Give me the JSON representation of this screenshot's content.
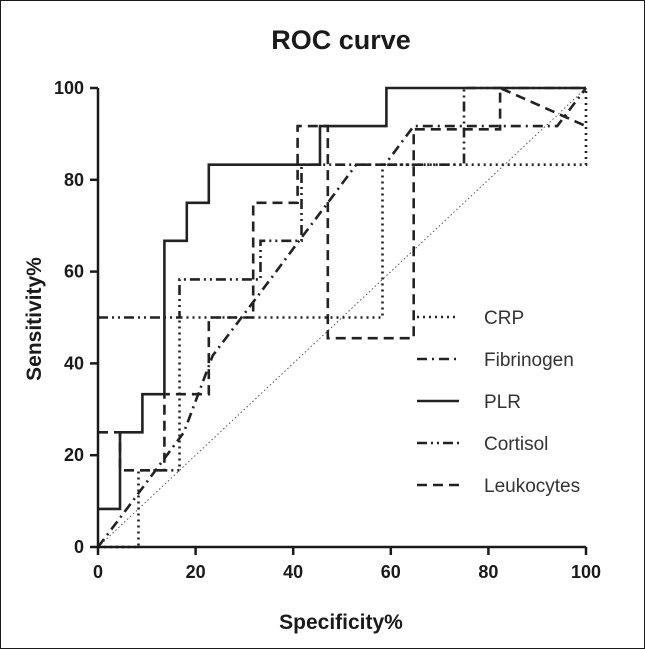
{
  "chart_data": {
    "type": "line",
    "title": "ROC curve",
    "xlabel": "Specificity%",
    "ylabel": "Sensitivity%",
    "xlim": [
      0,
      100
    ],
    "ylim": [
      0,
      100
    ],
    "xticks": [
      0,
      20,
      40,
      60,
      80,
      100
    ],
    "yticks": [
      0,
      20,
      40,
      60,
      80,
      100
    ],
    "grid": false,
    "legend_position": "right",
    "reference_line": {
      "name": "diagonal",
      "x": [
        0,
        100
      ],
      "y": [
        0,
        100
      ]
    },
    "series": [
      {
        "name": "CRP",
        "dash": "dot",
        "x": [
          0,
          8.3,
          8.3,
          16.7,
          16.7,
          58.3,
          58.3,
          100,
          100
        ],
        "y": [
          0,
          0,
          16.7,
          16.7,
          50,
          50,
          83.3,
          83.3,
          100
        ]
      },
      {
        "name": "Fibrinogen",
        "dash": "dashdot",
        "x": [
          0,
          5.9,
          11.8,
          17.6,
          23.5,
          29.4,
          35.3,
          41.2,
          47.1,
          52.9,
          58.8,
          64.7,
          70.6,
          76.5,
          82.4,
          88.2,
          94.1,
          100
        ],
        "y": [
          0,
          8.3,
          16.7,
          25,
          41.7,
          50,
          58.3,
          66.7,
          75,
          83.3,
          83.3,
          91.7,
          91.7,
          91.7,
          91.7,
          91.7,
          91.7,
          100
        ]
      },
      {
        "name": "PLR",
        "dash": "solid",
        "x": [
          0,
          4.5,
          4.5,
          9.1,
          9.1,
          13.6,
          13.6,
          18.2,
          18.2,
          22.7,
          22.7,
          45.5,
          45.5,
          59.1,
          59.1,
          100
        ],
        "y": [
          8.3,
          8.3,
          25,
          25,
          33.3,
          33.3,
          66.7,
          66.7,
          75,
          75,
          83.3,
          83.3,
          91.7,
          91.7,
          100,
          100
        ]
      },
      {
        "name": "Cortisol",
        "dash": "dashdotdot",
        "x": [
          0,
          16.7,
          16.7,
          33.3,
          33.3,
          41.7,
          41.7,
          75,
          75,
          100
        ],
        "y": [
          50,
          50,
          58.3,
          58.3,
          66.7,
          66.7,
          83.3,
          83.3,
          100,
          100
        ]
      },
      {
        "name": "Leukocytes",
        "dash": "dash",
        "x": [
          0,
          4.5,
          4.5,
          13.6,
          13.6,
          22.7,
          22.7,
          31.8,
          31.8,
          40.9,
          40.9,
          47.1,
          47.1,
          64.7,
          64.7,
          82.4,
          82.4,
          100
        ],
        "y": [
          25,
          25,
          16.7,
          16.7,
          33.3,
          33.3,
          50,
          50,
          75,
          75,
          91.7,
          91.7,
          45.5,
          45.5,
          91,
          91,
          100,
          91.7
        ]
      }
    ]
  }
}
